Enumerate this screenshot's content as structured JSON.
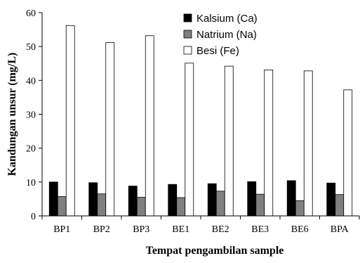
{
  "chart_data": {
    "type": "bar",
    "title": "",
    "xlabel": "Tempat pengambilan sample",
    "ylabel": "Kandungan unsur (mg/L)",
    "categories": [
      "BP1",
      "BP2",
      "BP3",
      "BE1",
      "BE2",
      "BE3",
      "BE6",
      "BPA"
    ],
    "ylim": [
      0,
      60
    ],
    "yticks": [
      0,
      10,
      20,
      30,
      40,
      50,
      60
    ],
    "grid": false,
    "legend_position": "top-center",
    "series": [
      {
        "name": "Kalsium (Ca)",
        "color": "#000000",
        "values": [
          10.0,
          9.8,
          8.8,
          9.3,
          9.5,
          10.1,
          10.4,
          9.7
        ]
      },
      {
        "name": "Natrium (Na)",
        "color": "#808080",
        "values": [
          5.7,
          6.5,
          5.5,
          5.4,
          7.3,
          6.4,
          4.5,
          6.3
        ]
      },
      {
        "name": "Besi (Fe)",
        "color": "#ffffff",
        "values": [
          56.2,
          51.2,
          53.2,
          45.1,
          44.2,
          43.1,
          42.8,
          37.2
        ]
      }
    ]
  }
}
